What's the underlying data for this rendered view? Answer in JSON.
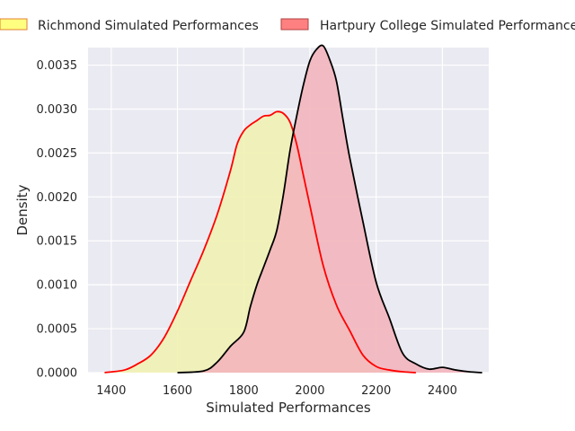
{
  "chart_data": {
    "type": "area",
    "title": "",
    "xlabel": "Simulated Performances",
    "ylabel": "Density",
    "xlim": [
      1330,
      2540
    ],
    "ylim": [
      0,
      0.0037
    ],
    "x_ticks": [
      1400,
      1600,
      1800,
      2000,
      2200,
      2400
    ],
    "x_tick_labels": [
      "1400",
      "1600",
      "1800",
      "2000",
      "2200",
      "2400"
    ],
    "y_ticks": [
      0,
      0.0005,
      0.001,
      0.0015,
      0.002,
      0.0025,
      0.003,
      0.0035
    ],
    "y_tick_labels": [
      "0.0000",
      "0.0005",
      "0.0010",
      "0.0015",
      "0.0020",
      "0.0025",
      "0.0030",
      "0.0035"
    ],
    "grid": true,
    "legend_position": "top",
    "series": [
      {
        "name": "Richmond Simulated Performances",
        "fill_color": "#f0f0b2",
        "legend_fill": "#ffff80",
        "line_color": "#ff0000",
        "x": [
          1380,
          1440,
          1480,
          1520,
          1560,
          1600,
          1640,
          1680,
          1720,
          1760,
          1780,
          1800,
          1820,
          1840,
          1860,
          1880,
          1900,
          1920,
          1940,
          1960,
          1980,
          2000,
          2040,
          2080,
          2120,
          2160,
          2200,
          2240,
          2280,
          2320
        ],
        "y": [
          0.0,
          3e-05,
          0.0001,
          0.0002,
          0.0004,
          0.0007,
          0.00105,
          0.0014,
          0.0018,
          0.0023,
          0.0026,
          0.00275,
          0.00282,
          0.00287,
          0.00292,
          0.00293,
          0.00297,
          0.00295,
          0.00285,
          0.0026,
          0.00225,
          0.0019,
          0.00122,
          0.00077,
          0.00048,
          0.0002,
          7e-05,
          3e-05,
          1e-05,
          0.0
        ]
      },
      {
        "name": "Hartpury College Simulated Performances",
        "fill_color": "#f2b3bb",
        "legend_fill": "#ff8080",
        "line_color": "#000000",
        "x": [
          1600,
          1680,
          1720,
          1760,
          1800,
          1820,
          1840,
          1860,
          1880,
          1900,
          1920,
          1940,
          1960,
          1980,
          2000,
          2020,
          2040,
          2060,
          2080,
          2100,
          2120,
          2160,
          2200,
          2240,
          2280,
          2320,
          2360,
          2400,
          2440,
          2480,
          2520
        ],
        "y": [
          0.0,
          2e-05,
          0.00012,
          0.0003,
          0.00046,
          0.00075,
          0.001,
          0.0012,
          0.0014,
          0.00162,
          0.00203,
          0.00253,
          0.00292,
          0.00327,
          0.00355,
          0.00368,
          0.00372,
          0.00356,
          0.00332,
          0.00288,
          0.00245,
          0.00172,
          0.00103,
          0.00062,
          0.00022,
          0.0001,
          4e-05,
          6e-05,
          3e-05,
          1e-05,
          0.0
        ]
      }
    ]
  }
}
